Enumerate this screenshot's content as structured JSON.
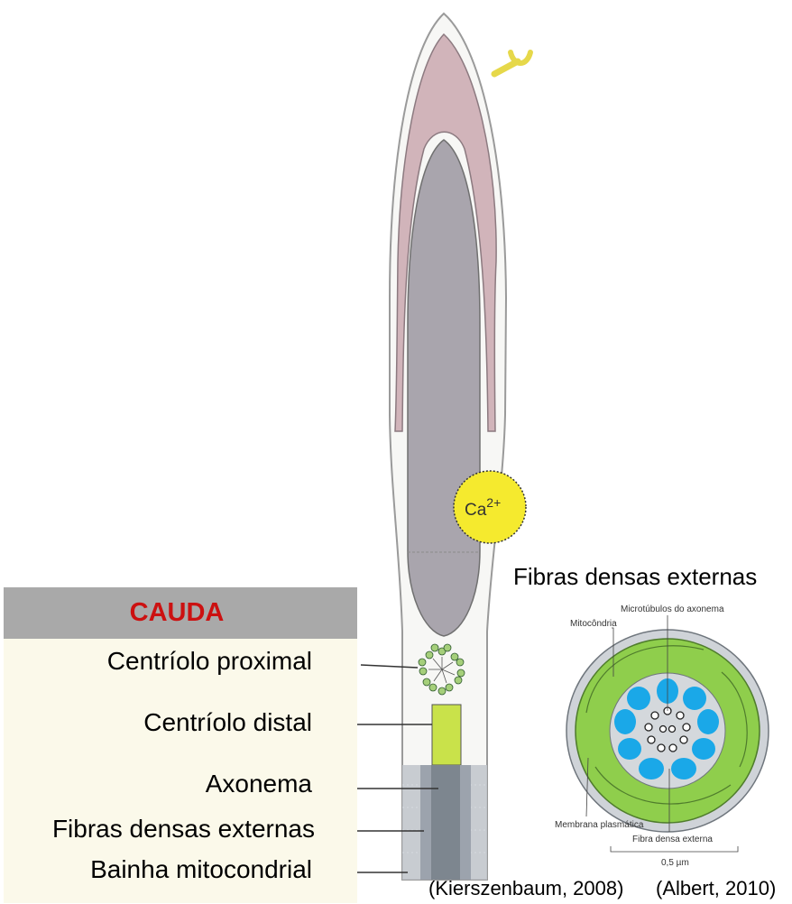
{
  "panel": {
    "title": "CAUDA",
    "labels": [
      "Centríolo proximal",
      "Centríolo distal",
      "Axonema",
      "Fibras densas externas",
      "Bainha mitocondrial"
    ]
  },
  "cross_section": {
    "title": "Fibras densas externas",
    "labels": {
      "microtubulos": "Microtúbulos do axonema",
      "mitocondria": "Mitocôndria",
      "membrana": "Membrana plasmática",
      "fibra": "Fibra densa externa",
      "scale": "0,5 µm"
    }
  },
  "ion": {
    "base": "Ca",
    "sup": "2+"
  },
  "citations": {
    "left": "(Kierszenbaum, 2008)",
    "right": "(Albert, 2010)"
  },
  "colors": {
    "acrosome": "#d1b4ba",
    "nucleus": "#a9a5ad",
    "calcium": "#f5ea2e",
    "distal_centriole": "#c9e24a",
    "mitochondria": "#8fce4c",
    "dense_fiber": "#1aa8e8",
    "caption_red": "#cc1111"
  },
  "icons": [
    "receptor-icon"
  ]
}
